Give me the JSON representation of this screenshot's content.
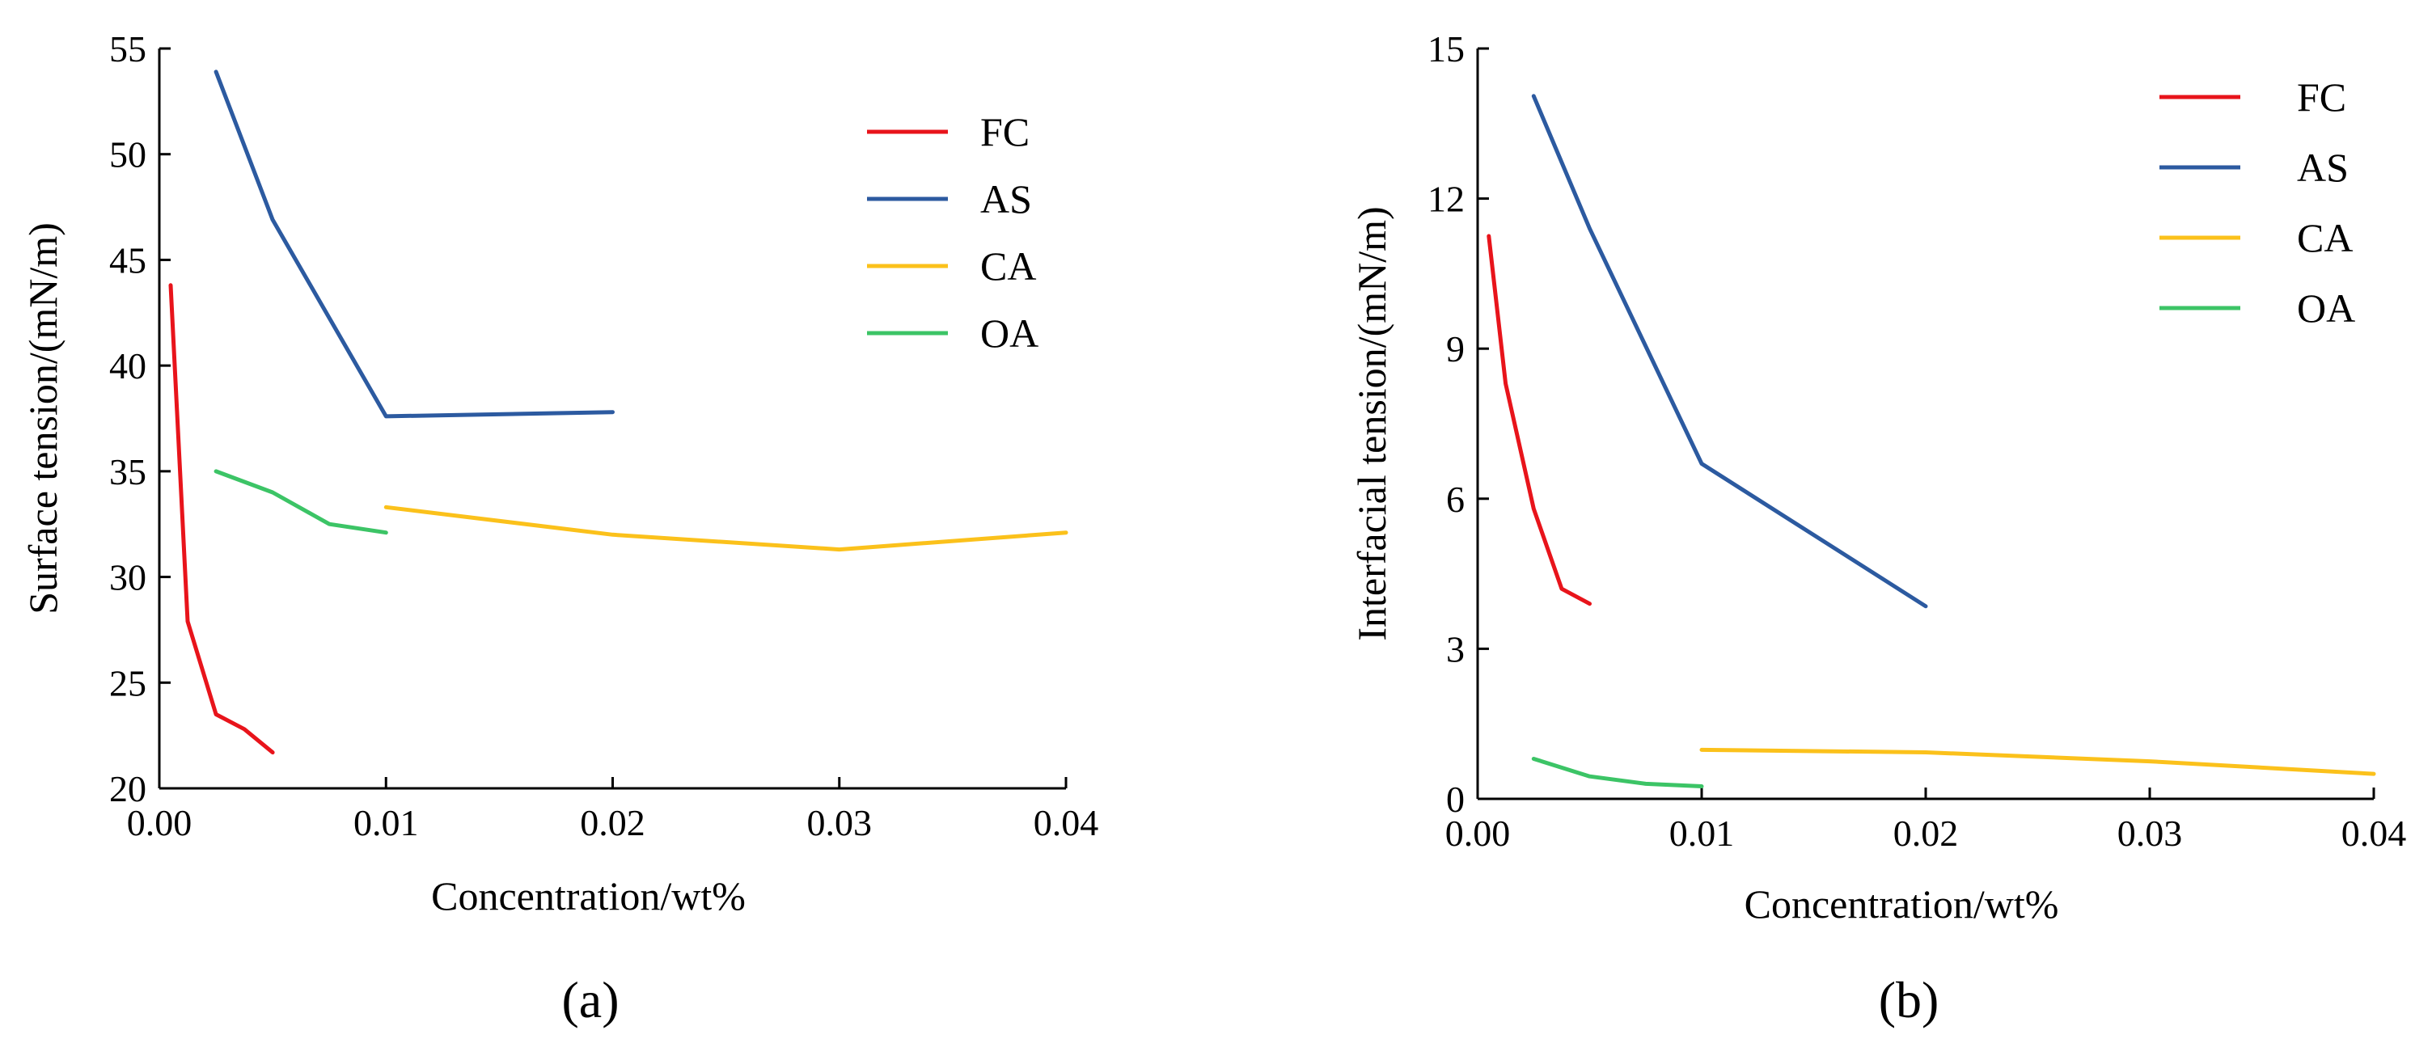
{
  "chart_data": [
    {
      "type": "line",
      "panel_label": "(a)",
      "xlabel": "Concentration/wt%",
      "ylabel": "Surface tension/(mN/m)",
      "xlim": [
        0.0,
        0.04
      ],
      "ylim": [
        20,
        55
      ],
      "xticks": [
        "0.00",
        "0.01",
        "0.02",
        "0.03",
        "0.04"
      ],
      "yticks": [
        "20",
        "25",
        "30",
        "35",
        "40",
        "45",
        "50",
        "55"
      ],
      "xtick_values": [
        0.0,
        0.01,
        0.02,
        0.03,
        0.04
      ],
      "ytick_values": [
        20,
        25,
        30,
        35,
        40,
        45,
        50,
        55
      ],
      "legend_position": "top-right",
      "series": [
        {
          "name": "FC",
          "color": "#e8141b",
          "x": [
            0.0005,
            0.00125,
            0.0025,
            0.00375,
            0.005
          ],
          "y": [
            43.8,
            27.9,
            23.5,
            22.8,
            21.7
          ]
        },
        {
          "name": "AS",
          "color": "#2c5aa0",
          "x": [
            0.0025,
            0.005,
            0.01,
            0.02
          ],
          "y": [
            53.9,
            46.9,
            37.6,
            37.8
          ]
        },
        {
          "name": "CA",
          "color": "#fbc11b",
          "x": [
            0.01,
            0.02,
            0.03,
            0.04
          ],
          "y": [
            33.3,
            32.0,
            31.3,
            32.1
          ]
        },
        {
          "name": "OA",
          "color": "#3cc466",
          "x": [
            0.0025,
            0.005,
            0.0075,
            0.01
          ],
          "y": [
            35.0,
            34.0,
            32.5,
            32.1
          ]
        }
      ]
    },
    {
      "type": "line",
      "panel_label": "(b)",
      "xlabel": "Concentration/wt%",
      "ylabel": "Interfacial tension/(mN/m)",
      "xlim": [
        0.0,
        0.04
      ],
      "ylim": [
        0,
        15
      ],
      "xticks": [
        "0.00",
        "0.01",
        "0.02",
        "0.03",
        "0.04"
      ],
      "yticks": [
        "0",
        "3",
        "6",
        "9",
        "12",
        "15"
      ],
      "xtick_values": [
        0.0,
        0.01,
        0.02,
        0.03,
        0.04
      ],
      "ytick_values": [
        0,
        3,
        6,
        9,
        12,
        15
      ],
      "legend_position": "top-right",
      "series": [
        {
          "name": "FC",
          "color": "#e8141b",
          "x": [
            0.0005,
            0.00125,
            0.0025,
            0.00375,
            0.005
          ],
          "y": [
            11.25,
            8.3,
            5.8,
            4.2,
            3.9
          ]
        },
        {
          "name": "AS",
          "color": "#2c5aa0",
          "x": [
            0.0025,
            0.005,
            0.01,
            0.02
          ],
          "y": [
            14.05,
            11.4,
            6.7,
            3.85
          ]
        },
        {
          "name": "CA",
          "color": "#fbc11b",
          "x": [
            0.01,
            0.02,
            0.03,
            0.04
          ],
          "y": [
            0.98,
            0.93,
            0.75,
            0.5
          ]
        },
        {
          "name": "OA",
          "color": "#3cc466",
          "x": [
            0.0025,
            0.005,
            0.0075,
            0.01
          ],
          "y": [
            0.8,
            0.45,
            0.3,
            0.25
          ]
        }
      ]
    }
  ]
}
